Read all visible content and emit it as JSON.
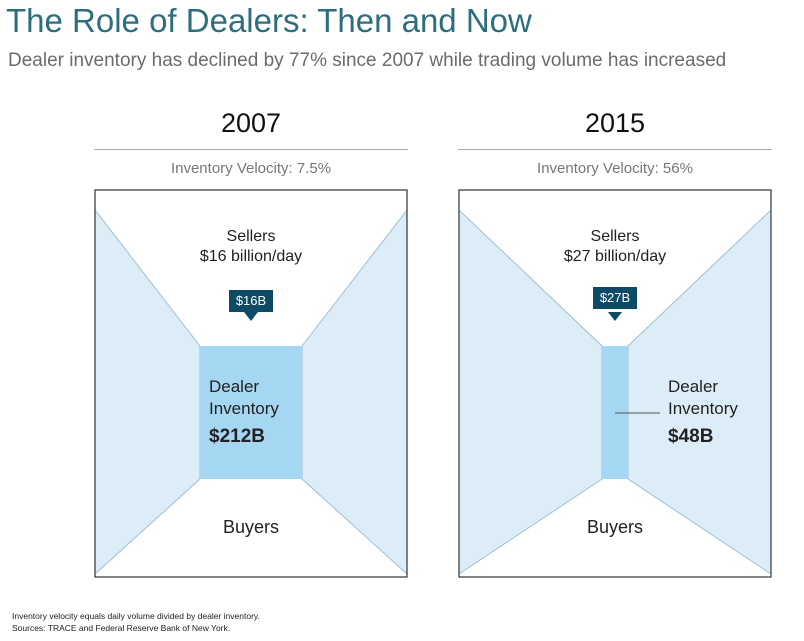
{
  "header": {
    "title": "The Role of Dealers: Then and Now",
    "subtitle": "Dealer inventory has declined by 77% since 2007 while trading volume has increased"
  },
  "panels": [
    {
      "year": "2007",
      "velocity": "Inventory Velocity: 7.5%",
      "sellers_line1": "Sellers",
      "sellers_line2": "$16 billion/day",
      "callout": "$16B",
      "dealer_line1": "Dealer",
      "dealer_line2": "Inventory",
      "dealer_amount": "$212B",
      "buyers": "Buyers",
      "inventory_billions": 212,
      "daily_volume_billions": 16
    },
    {
      "year": "2015",
      "velocity": "Inventory Velocity: 56%",
      "sellers_line1": "Sellers",
      "sellers_line2": "$27 billion/day",
      "callout": "$27B",
      "dealer_line1": "Dealer",
      "dealer_line2": "Inventory",
      "dealer_amount": "$48B",
      "buyers": "Buyers",
      "inventory_billions": 48,
      "daily_volume_billions": 27
    }
  ],
  "footnotes": {
    "line1": "Inventory velocity equals daily volume divided by dealer inventory.",
    "line2": "Sources: TRACE and Federal Reserve Bank of New York."
  },
  "colors": {
    "title": "#2d6e7e",
    "side_fill": "#dcedf8",
    "inventory_fill": "#a6d7f2",
    "callout_fill": "#0d4a66"
  }
}
